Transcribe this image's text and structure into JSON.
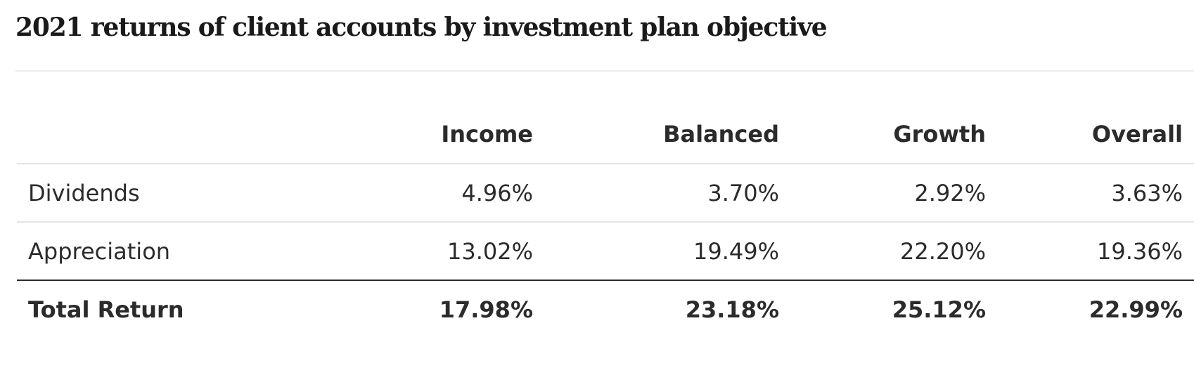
{
  "chart_data": {
    "type": "table",
    "title": "2021 returns of client accounts by investment plan objective",
    "columns": [
      "",
      "Income",
      "Balanced",
      "Growth",
      "Overall"
    ],
    "rows": [
      {
        "label": "Dividends",
        "values": [
          "4.96%",
          "3.70%",
          "2.92%",
          "3.63%"
        ]
      },
      {
        "label": "Appreciation",
        "values": [
          "13.02%",
          "19.49%",
          "22.20%",
          "19.36%"
        ]
      },
      {
        "label": "Total Return",
        "values": [
          "17.98%",
          "23.18%",
          "25.12%",
          "22.99%"
        ]
      }
    ]
  }
}
